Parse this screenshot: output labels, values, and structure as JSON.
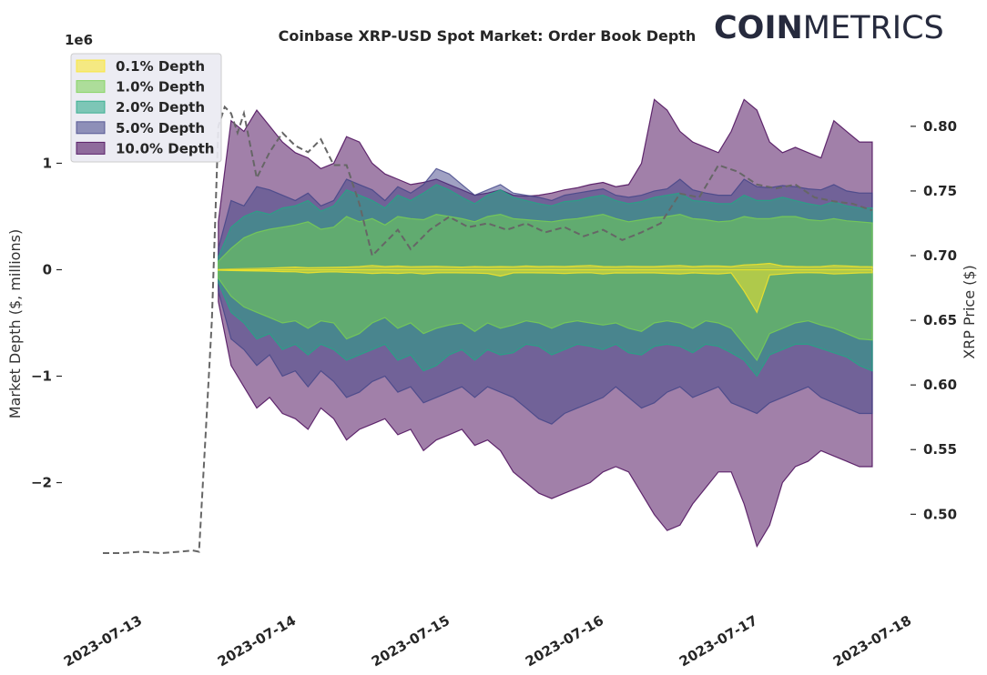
{
  "chart_data": {
    "type": "area",
    "title": "Coinbase XRP-USD Spot Market: Order Book Depth",
    "brand": {
      "bold": "COIN",
      "light": "METRICS"
    },
    "xlabel": "",
    "x_ticks": [
      "2023-07-13",
      "2023-07-14",
      "2023-07-15",
      "2023-07-16",
      "2023-07-17",
      "2023-07-18"
    ],
    "y_left": {
      "label": "Market Depth ($, millions)",
      "offset_text": "1e6",
      "ticks": [
        "1",
        "0",
        "−1",
        "−2"
      ],
      "tick_values": [
        1000000,
        0,
        -1000000,
        -2000000
      ],
      "ylim": [
        -2850000,
        1850000
      ]
    },
    "y_right": {
      "label": "XRP Price ($)",
      "ticks": [
        "0.80",
        "0.75",
        "0.70",
        "0.65",
        "0.60",
        "0.55",
        "0.50"
      ],
      "tick_values": [
        0.8,
        0.75,
        0.7,
        0.65,
        0.6,
        0.55,
        0.5
      ],
      "ylim": [
        0.4545,
        0.8414
      ]
    },
    "grid": false,
    "legend_position": "top-left",
    "time_start": "2023-07-13T00:00",
    "depth_times": [
      "2023-07-13T18:00",
      "2023-07-13T20:00",
      "2023-07-13T22:00",
      "2023-07-14T00:00",
      "2023-07-14T02:00",
      "2023-07-14T04:00",
      "2023-07-14T06:00",
      "2023-07-14T08:00",
      "2023-07-14T10:00",
      "2023-07-14T12:00",
      "2023-07-14T14:00",
      "2023-07-14T16:00",
      "2023-07-14T18:00",
      "2023-07-14T20:00",
      "2023-07-14T22:00",
      "2023-07-15T00:00",
      "2023-07-15T02:00",
      "2023-07-15T04:00",
      "2023-07-15T06:00",
      "2023-07-15T08:00",
      "2023-07-15T10:00",
      "2023-07-15T12:00",
      "2023-07-15T14:00",
      "2023-07-15T16:00",
      "2023-07-15T18:00",
      "2023-07-15T20:00",
      "2023-07-15T22:00",
      "2023-07-16T00:00",
      "2023-07-16T02:00",
      "2023-07-16T04:00",
      "2023-07-16T06:00",
      "2023-07-16T08:00",
      "2023-07-16T10:00",
      "2023-07-16T12:00",
      "2023-07-16T14:00",
      "2023-07-16T16:00",
      "2023-07-16T18:00",
      "2023-07-16T20:00",
      "2023-07-16T22:00",
      "2023-07-17T00:00",
      "2023-07-17T02:00",
      "2023-07-17T04:00",
      "2023-07-17T06:00",
      "2023-07-17T08:00",
      "2023-07-17T10:00",
      "2023-07-17T12:00",
      "2023-07-17T14:00",
      "2023-07-17T16:00",
      "2023-07-17T18:00",
      "2023-07-17T20:00",
      "2023-07-17T22:00",
      "2023-07-18T00:00"
    ],
    "series": [
      {
        "name": "0.1% Depth",
        "color": "#fde725",
        "bid": [
          5000,
          8000,
          10000,
          12000,
          15000,
          20000,
          25000,
          18000,
          20000,
          22000,
          25000,
          30000,
          40000,
          30000,
          35000,
          28000,
          30000,
          32000,
          28000,
          25000,
          30000,
          26000,
          30000,
          28000,
          35000,
          30000,
          32000,
          30000,
          35000,
          40000,
          30000,
          28000,
          32000,
          30000,
          30000,
          35000,
          40000,
          30000,
          35000,
          35000,
          30000,
          45000,
          50000,
          60000,
          35000,
          30000,
          28000,
          30000,
          40000,
          35000,
          30000,
          28000
        ],
        "ask": [
          -5000,
          -8000,
          -10000,
          -12000,
          -15000,
          -18000,
          -20000,
          -30000,
          -22000,
          -20000,
          -25000,
          -28000,
          -35000,
          -30000,
          -35000,
          -28000,
          -40000,
          -30000,
          -28000,
          -30000,
          -32000,
          -35000,
          -60000,
          -30000,
          -28000,
          -30000,
          -32000,
          -35000,
          -30000,
          -28000,
          -40000,
          -30000,
          -32000,
          -30000,
          -30000,
          -35000,
          -40000,
          -30000,
          -35000,
          -40000,
          -30000,
          -200000,
          -400000,
          -50000,
          -40000,
          -30000,
          -28000,
          -30000,
          -40000,
          -35000,
          -30000,
          -28000
        ]
      },
      {
        "name": "1.0% Depth",
        "color": "#7ad151",
        "bid": [
          80000,
          200000,
          300000,
          350000,
          380000,
          400000,
          420000,
          450000,
          380000,
          400000,
          500000,
          450000,
          480000,
          420000,
          500000,
          480000,
          470000,
          520000,
          500000,
          480000,
          450000,
          500000,
          520000,
          480000,
          470000,
          460000,
          450000,
          470000,
          480000,
          500000,
          520000,
          480000,
          450000,
          470000,
          490000,
          500000,
          520000,
          480000,
          470000,
          450000,
          460000,
          500000,
          480000,
          480000,
          500000,
          500000,
          470000,
          460000,
          480000,
          460000,
          450000,
          440000
        ],
        "ask": [
          -80000,
          -250000,
          -350000,
          -400000,
          -450000,
          -500000,
          -480000,
          -550000,
          -480000,
          -500000,
          -650000,
          -600000,
          -500000,
          -450000,
          -550000,
          -500000,
          -600000,
          -550000,
          -520000,
          -500000,
          -580000,
          -500000,
          -550000,
          -520000,
          -480000,
          -500000,
          -550000,
          -500000,
          -480000,
          -500000,
          -520000,
          -500000,
          -550000,
          -580000,
          -500000,
          -480000,
          -500000,
          -550000,
          -480000,
          -500000,
          -550000,
          -700000,
          -850000,
          -600000,
          -550000,
          -500000,
          -480000,
          -520000,
          -550000,
          -600000,
          -650000,
          -660000
        ]
      },
      {
        "name": "2.0% Depth",
        "color": "#22a884",
        "bid": [
          120000,
          400000,
          500000,
          550000,
          520000,
          580000,
          600000,
          650000,
          550000,
          600000,
          750000,
          700000,
          650000,
          580000,
          700000,
          650000,
          720000,
          800000,
          750000,
          680000,
          620000,
          700000,
          750000,
          680000,
          650000,
          620000,
          600000,
          640000,
          650000,
          680000,
          700000,
          650000,
          620000,
          640000,
          680000,
          700000,
          720000,
          650000,
          640000,
          620000,
          620000,
          700000,
          650000,
          650000,
          680000,
          650000,
          620000,
          600000,
          640000,
          600000,
          580000,
          580000
        ],
        "ask": [
          -120000,
          -400000,
          -500000,
          -650000,
          -600000,
          -750000,
          -700000,
          -800000,
          -700000,
          -750000,
          -850000,
          -800000,
          -750000,
          -700000,
          -850000,
          -800000,
          -950000,
          -900000,
          -800000,
          -750000,
          -850000,
          -750000,
          -800000,
          -780000,
          -700000,
          -720000,
          -800000,
          -750000,
          -700000,
          -720000,
          -750000,
          -700000,
          -780000,
          -800000,
          -720000,
          -700000,
          -720000,
          -780000,
          -700000,
          -720000,
          -780000,
          -850000,
          -1000000,
          -800000,
          -750000,
          -700000,
          -700000,
          -740000,
          -780000,
          -820000,
          -900000,
          -950000
        ]
      },
      {
        "name": "5.0% Depth",
        "color": "#414487",
        "bid": [
          200000,
          650000,
          600000,
          780000,
          750000,
          700000,
          650000,
          720000,
          600000,
          650000,
          850000,
          800000,
          750000,
          650000,
          780000,
          720000,
          800000,
          950000,
          900000,
          800000,
          700000,
          750000,
          800000,
          720000,
          700000,
          680000,
          650000,
          700000,
          720000,
          740000,
          760000,
          700000,
          680000,
          700000,
          740000,
          760000,
          850000,
          750000,
          720000,
          700000,
          700000,
          850000,
          780000,
          770000,
          790000,
          780000,
          760000,
          750000,
          800000,
          740000,
          720000,
          720000
        ],
        "ask": [
          -200000,
          -650000,
          -750000,
          -900000,
          -800000,
          -1000000,
          -950000,
          -1100000,
          -950000,
          -1050000,
          -1200000,
          -1150000,
          -1050000,
          -1000000,
          -1150000,
          -1100000,
          -1250000,
          -1200000,
          -1150000,
          -1100000,
          -1200000,
          -1100000,
          -1150000,
          -1200000,
          -1300000,
          -1400000,
          -1450000,
          -1350000,
          -1300000,
          -1250000,
          -1200000,
          -1100000,
          -1200000,
          -1300000,
          -1250000,
          -1150000,
          -1100000,
          -1200000,
          -1150000,
          -1100000,
          -1250000,
          -1300000,
          -1350000,
          -1250000,
          -1200000,
          -1150000,
          -1100000,
          -1200000,
          -1250000,
          -1300000,
          -1350000,
          -1350000
        ]
      },
      {
        "name": "10.0% Depth",
        "color": "#440154",
        "bid": [
          450000,
          1400000,
          1300000,
          1500000,
          1350000,
          1200000,
          1100000,
          1050000,
          950000,
          1000000,
          1250000,
          1200000,
          1000000,
          900000,
          850000,
          800000,
          820000,
          850000,
          800000,
          750000,
          700000,
          720000,
          750000,
          700000,
          690000,
          700000,
          720000,
          750000,
          770000,
          800000,
          820000,
          780000,
          800000,
          1000000,
          1600000,
          1500000,
          1300000,
          1200000,
          1150000,
          1100000,
          1300000,
          1600000,
          1500000,
          1200000,
          1100000,
          1150000,
          1100000,
          1050000,
          1400000,
          1300000,
          1200000,
          1200000
        ]
      },
      {
        "name": "10.0% Depth (ask)",
        "color": "#440154",
        "ask": [
          -300000,
          -900000,
          -1100000,
          -1300000,
          -1200000,
          -1350000,
          -1400000,
          -1500000,
          -1300000,
          -1400000,
          -1600000,
          -1500000,
          -1450000,
          -1400000,
          -1550000,
          -1500000,
          -1700000,
          -1600000,
          -1550000,
          -1500000,
          -1650000,
          -1600000,
          -1700000,
          -1900000,
          -2000000,
          -2100000,
          -2150000,
          -2100000,
          -2050000,
          -2000000,
          -1900000,
          -1850000,
          -1900000,
          -2100000,
          -2300000,
          -2450000,
          -2400000,
          -2200000,
          -2050000,
          -1900000,
          -1900000,
          -2200000,
          -2600000,
          -2400000,
          -2000000,
          -1850000,
          -1800000,
          -1700000,
          -1750000,
          -1800000,
          -1850000,
          -1850000
        ]
      }
    ],
    "price": {
      "name": "XRP Price ($)",
      "color": "#666666",
      "times": [
        "2023-07-13T00:00",
        "2023-07-13T03:00",
        "2023-07-13T06:00",
        "2023-07-13T09:00",
        "2023-07-13T12:00",
        "2023-07-13T14:00",
        "2023-07-13T15:00",
        "2023-07-13T16:00",
        "2023-07-13T17:00",
        "2023-07-13T18:00",
        "2023-07-13T19:00",
        "2023-07-13T20:00",
        "2023-07-13T21:00",
        "2023-07-13T22:00",
        "2023-07-14T00:00",
        "2023-07-14T02:00",
        "2023-07-14T04:00",
        "2023-07-14T06:00",
        "2023-07-14T08:00",
        "2023-07-14T10:00",
        "2023-07-14T12:00",
        "2023-07-14T14:00",
        "2023-07-14T16:00",
        "2023-07-14T18:00",
        "2023-07-14T20:00",
        "2023-07-14T22:00",
        "2023-07-15T00:00",
        "2023-07-15T03:00",
        "2023-07-15T06:00",
        "2023-07-15T09:00",
        "2023-07-15T12:00",
        "2023-07-15T15:00",
        "2023-07-15T18:00",
        "2023-07-15T21:00",
        "2023-07-16T00:00",
        "2023-07-16T03:00",
        "2023-07-16T06:00",
        "2023-07-16T09:00",
        "2023-07-16T12:00",
        "2023-07-16T15:00",
        "2023-07-16T18:00",
        "2023-07-16T21:00",
        "2023-07-17T00:00",
        "2023-07-17T03:00",
        "2023-07-17T06:00",
        "2023-07-17T09:00",
        "2023-07-17T12:00",
        "2023-07-17T15:00",
        "2023-07-17T18:00",
        "2023-07-17T21:00",
        "2023-07-18T00:00"
      ],
      "values": [
        0.47,
        0.47,
        0.471,
        0.47,
        0.471,
        0.472,
        0.471,
        0.56,
        0.65,
        0.8,
        0.815,
        0.81,
        0.795,
        0.81,
        0.76,
        0.78,
        0.795,
        0.785,
        0.78,
        0.79,
        0.77,
        0.77,
        0.74,
        0.7,
        0.71,
        0.72,
        0.705,
        0.72,
        0.73,
        0.722,
        0.725,
        0.72,
        0.725,
        0.718,
        0.722,
        0.715,
        0.72,
        0.712,
        0.718,
        0.725,
        0.748,
        0.745,
        0.77,
        0.765,
        0.755,
        0.752,
        0.755,
        0.745,
        0.742,
        0.74,
        0.735
      ]
    }
  }
}
